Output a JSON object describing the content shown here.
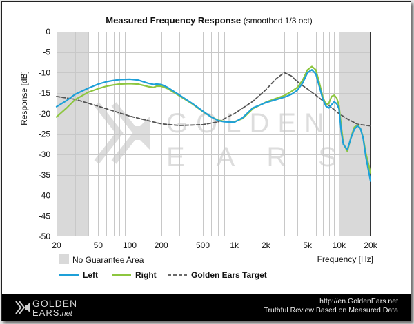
{
  "chart_data": {
    "type": "line",
    "title": "Measured Frequency Response",
    "subtitle": "(smoothed  1/3 oct)",
    "xlabel": "Frequency [Hz]",
    "ylabel": "Response [dB]",
    "xscale": "log",
    "xlim": [
      20,
      20000
    ],
    "ylim": [
      -50,
      0
    ],
    "x_ticks": [
      20,
      50,
      100,
      200,
      500,
      1000,
      2000,
      5000,
      10000,
      20000
    ],
    "x_tick_labels": [
      "20",
      "50",
      "100",
      "200",
      "500",
      "1k",
      "2k",
      "5k",
      "10k",
      "20k"
    ],
    "y_ticks": [
      0,
      -5,
      -10,
      -15,
      -20,
      -25,
      -30,
      -35,
      -40,
      -45,
      -50
    ],
    "y_tick_labels": [
      "0",
      "-5",
      "-10",
      "-15",
      "-20",
      "-25",
      "-30",
      "-35",
      "-40",
      "-45",
      "-50"
    ],
    "grid": true,
    "no_guarantee_areas": [
      [
        20,
        40
      ],
      [
        10000,
        20000
      ]
    ],
    "series": [
      {
        "name": "Left",
        "color": "#1ea0d8",
        "dash": "solid",
        "points": [
          [
            20,
            -18.3
          ],
          [
            25,
            -16.8
          ],
          [
            30,
            -15.3
          ],
          [
            40,
            -13.8
          ],
          [
            50,
            -12.8
          ],
          [
            60,
            -12.2
          ],
          [
            70,
            -11.9
          ],
          [
            80,
            -11.7
          ],
          [
            100,
            -11.6
          ],
          [
            120,
            -11.8
          ],
          [
            150,
            -12.6
          ],
          [
            170,
            -12.9
          ],
          [
            180,
            -12.8
          ],
          [
            200,
            -12.9
          ],
          [
            230,
            -13.6
          ],
          [
            300,
            -15.5
          ],
          [
            400,
            -17.6
          ],
          [
            500,
            -19.4
          ],
          [
            600,
            -20.8
          ],
          [
            700,
            -21.7
          ],
          [
            800,
            -22.0
          ],
          [
            1000,
            -22.1
          ],
          [
            1200,
            -21.0
          ],
          [
            1500,
            -18.6
          ],
          [
            2000,
            -17.3
          ],
          [
            2500,
            -16.6
          ],
          [
            3000,
            -16.0
          ],
          [
            3500,
            -15.3
          ],
          [
            4000,
            -14.3
          ],
          [
            4500,
            -12.5
          ],
          [
            5000,
            -10.0
          ],
          [
            5500,
            -9.3
          ],
          [
            6000,
            -10.3
          ],
          [
            6500,
            -13.5
          ],
          [
            7000,
            -16.5
          ],
          [
            7500,
            -18.2
          ],
          [
            8000,
            -18.6
          ],
          [
            8500,
            -17.8
          ],
          [
            9000,
            -17.1
          ],
          [
            9500,
            -17.6
          ],
          [
            10000,
            -18.8
          ],
          [
            10500,
            -24.5
          ],
          [
            11000,
            -27.5
          ],
          [
            12000,
            -28.8
          ],
          [
            13000,
            -26.0
          ],
          [
            14000,
            -23.8
          ],
          [
            15000,
            -23.0
          ],
          [
            16000,
            -23.6
          ],
          [
            17000,
            -26.0
          ],
          [
            18000,
            -30.5
          ],
          [
            20000,
            -36.5
          ]
        ]
      },
      {
        "name": "Right",
        "color": "#8dc63f",
        "dash": "solid",
        "points": [
          [
            20,
            -20.8
          ],
          [
            25,
            -18.6
          ],
          [
            30,
            -16.6
          ],
          [
            40,
            -14.8
          ],
          [
            50,
            -13.9
          ],
          [
            60,
            -13.3
          ],
          [
            70,
            -13.0
          ],
          [
            80,
            -12.8
          ],
          [
            100,
            -12.7
          ],
          [
            120,
            -12.8
          ],
          [
            150,
            -13.4
          ],
          [
            170,
            -13.6
          ],
          [
            180,
            -13.3
          ],
          [
            200,
            -13.3
          ],
          [
            230,
            -13.9
          ],
          [
            300,
            -15.7
          ],
          [
            400,
            -17.7
          ],
          [
            500,
            -19.5
          ],
          [
            600,
            -20.8
          ],
          [
            700,
            -21.6
          ],
          [
            800,
            -21.9
          ],
          [
            1000,
            -22.0
          ],
          [
            1200,
            -21.2
          ],
          [
            1500,
            -18.8
          ],
          [
            2000,
            -17.2
          ],
          [
            2500,
            -16.3
          ],
          [
            3000,
            -15.6
          ],
          [
            3500,
            -14.6
          ],
          [
            4000,
            -13.6
          ],
          [
            4500,
            -11.8
          ],
          [
            5000,
            -9.3
          ],
          [
            5500,
            -8.5
          ],
          [
            6000,
            -9.3
          ],
          [
            6500,
            -12.6
          ],
          [
            7000,
            -16.0
          ],
          [
            7500,
            -17.8
          ],
          [
            8000,
            -17.5
          ],
          [
            8500,
            -15.8
          ],
          [
            9000,
            -15.5
          ],
          [
            9500,
            -16.2
          ],
          [
            10000,
            -18.0
          ],
          [
            10500,
            -23.2
          ],
          [
            11000,
            -27.3
          ],
          [
            12000,
            -29.2
          ],
          [
            13000,
            -25.8
          ],
          [
            14000,
            -23.3
          ],
          [
            15000,
            -22.8
          ],
          [
            16000,
            -23.6
          ],
          [
            17000,
            -25.8
          ],
          [
            18000,
            -29.6
          ],
          [
            20000,
            -34.5
          ]
        ]
      },
      {
        "name": "Golden Ears Target",
        "color": "#555555",
        "dash": "dashed",
        "points": [
          [
            20,
            -15.8
          ],
          [
            30,
            -16.5
          ],
          [
            50,
            -18.2
          ],
          [
            100,
            -20.6
          ],
          [
            200,
            -22.5
          ],
          [
            300,
            -22.9
          ],
          [
            500,
            -22.7
          ],
          [
            700,
            -22.0
          ],
          [
            1000,
            -20.0
          ],
          [
            1500,
            -17.0
          ],
          [
            2000,
            -14.2
          ],
          [
            2500,
            -11.5
          ],
          [
            3000,
            -10.0
          ],
          [
            3500,
            -10.8
          ],
          [
            4000,
            -12.2
          ],
          [
            5000,
            -14.0
          ],
          [
            6000,
            -15.5
          ],
          [
            8000,
            -18.0
          ],
          [
            10000,
            -20.0
          ],
          [
            12000,
            -21.3
          ],
          [
            15000,
            -22.6
          ],
          [
            20000,
            -23.0
          ]
        ]
      }
    ],
    "legend": {
      "placement": "bottom",
      "area_label": "No Guarantee Area",
      "entries": [
        "Left",
        "Right",
        "Golden Ears Target"
      ]
    }
  },
  "watermark": {
    "top": "GOLDEN",
    "bottom": "EARS"
  },
  "footer": {
    "logo_top": "GOLDEN",
    "logo_bottom": "EARS",
    "logo_suffix": ".net",
    "url": "http://en.GoldenEars.net",
    "tagline": "Truthful Review Based on Measured Data"
  },
  "colors": {
    "plot_background": "#ffffff",
    "no_guarantee_fill": "#d9d9d9",
    "grid": "#c8c8c8",
    "footer_background": "#000000"
  }
}
